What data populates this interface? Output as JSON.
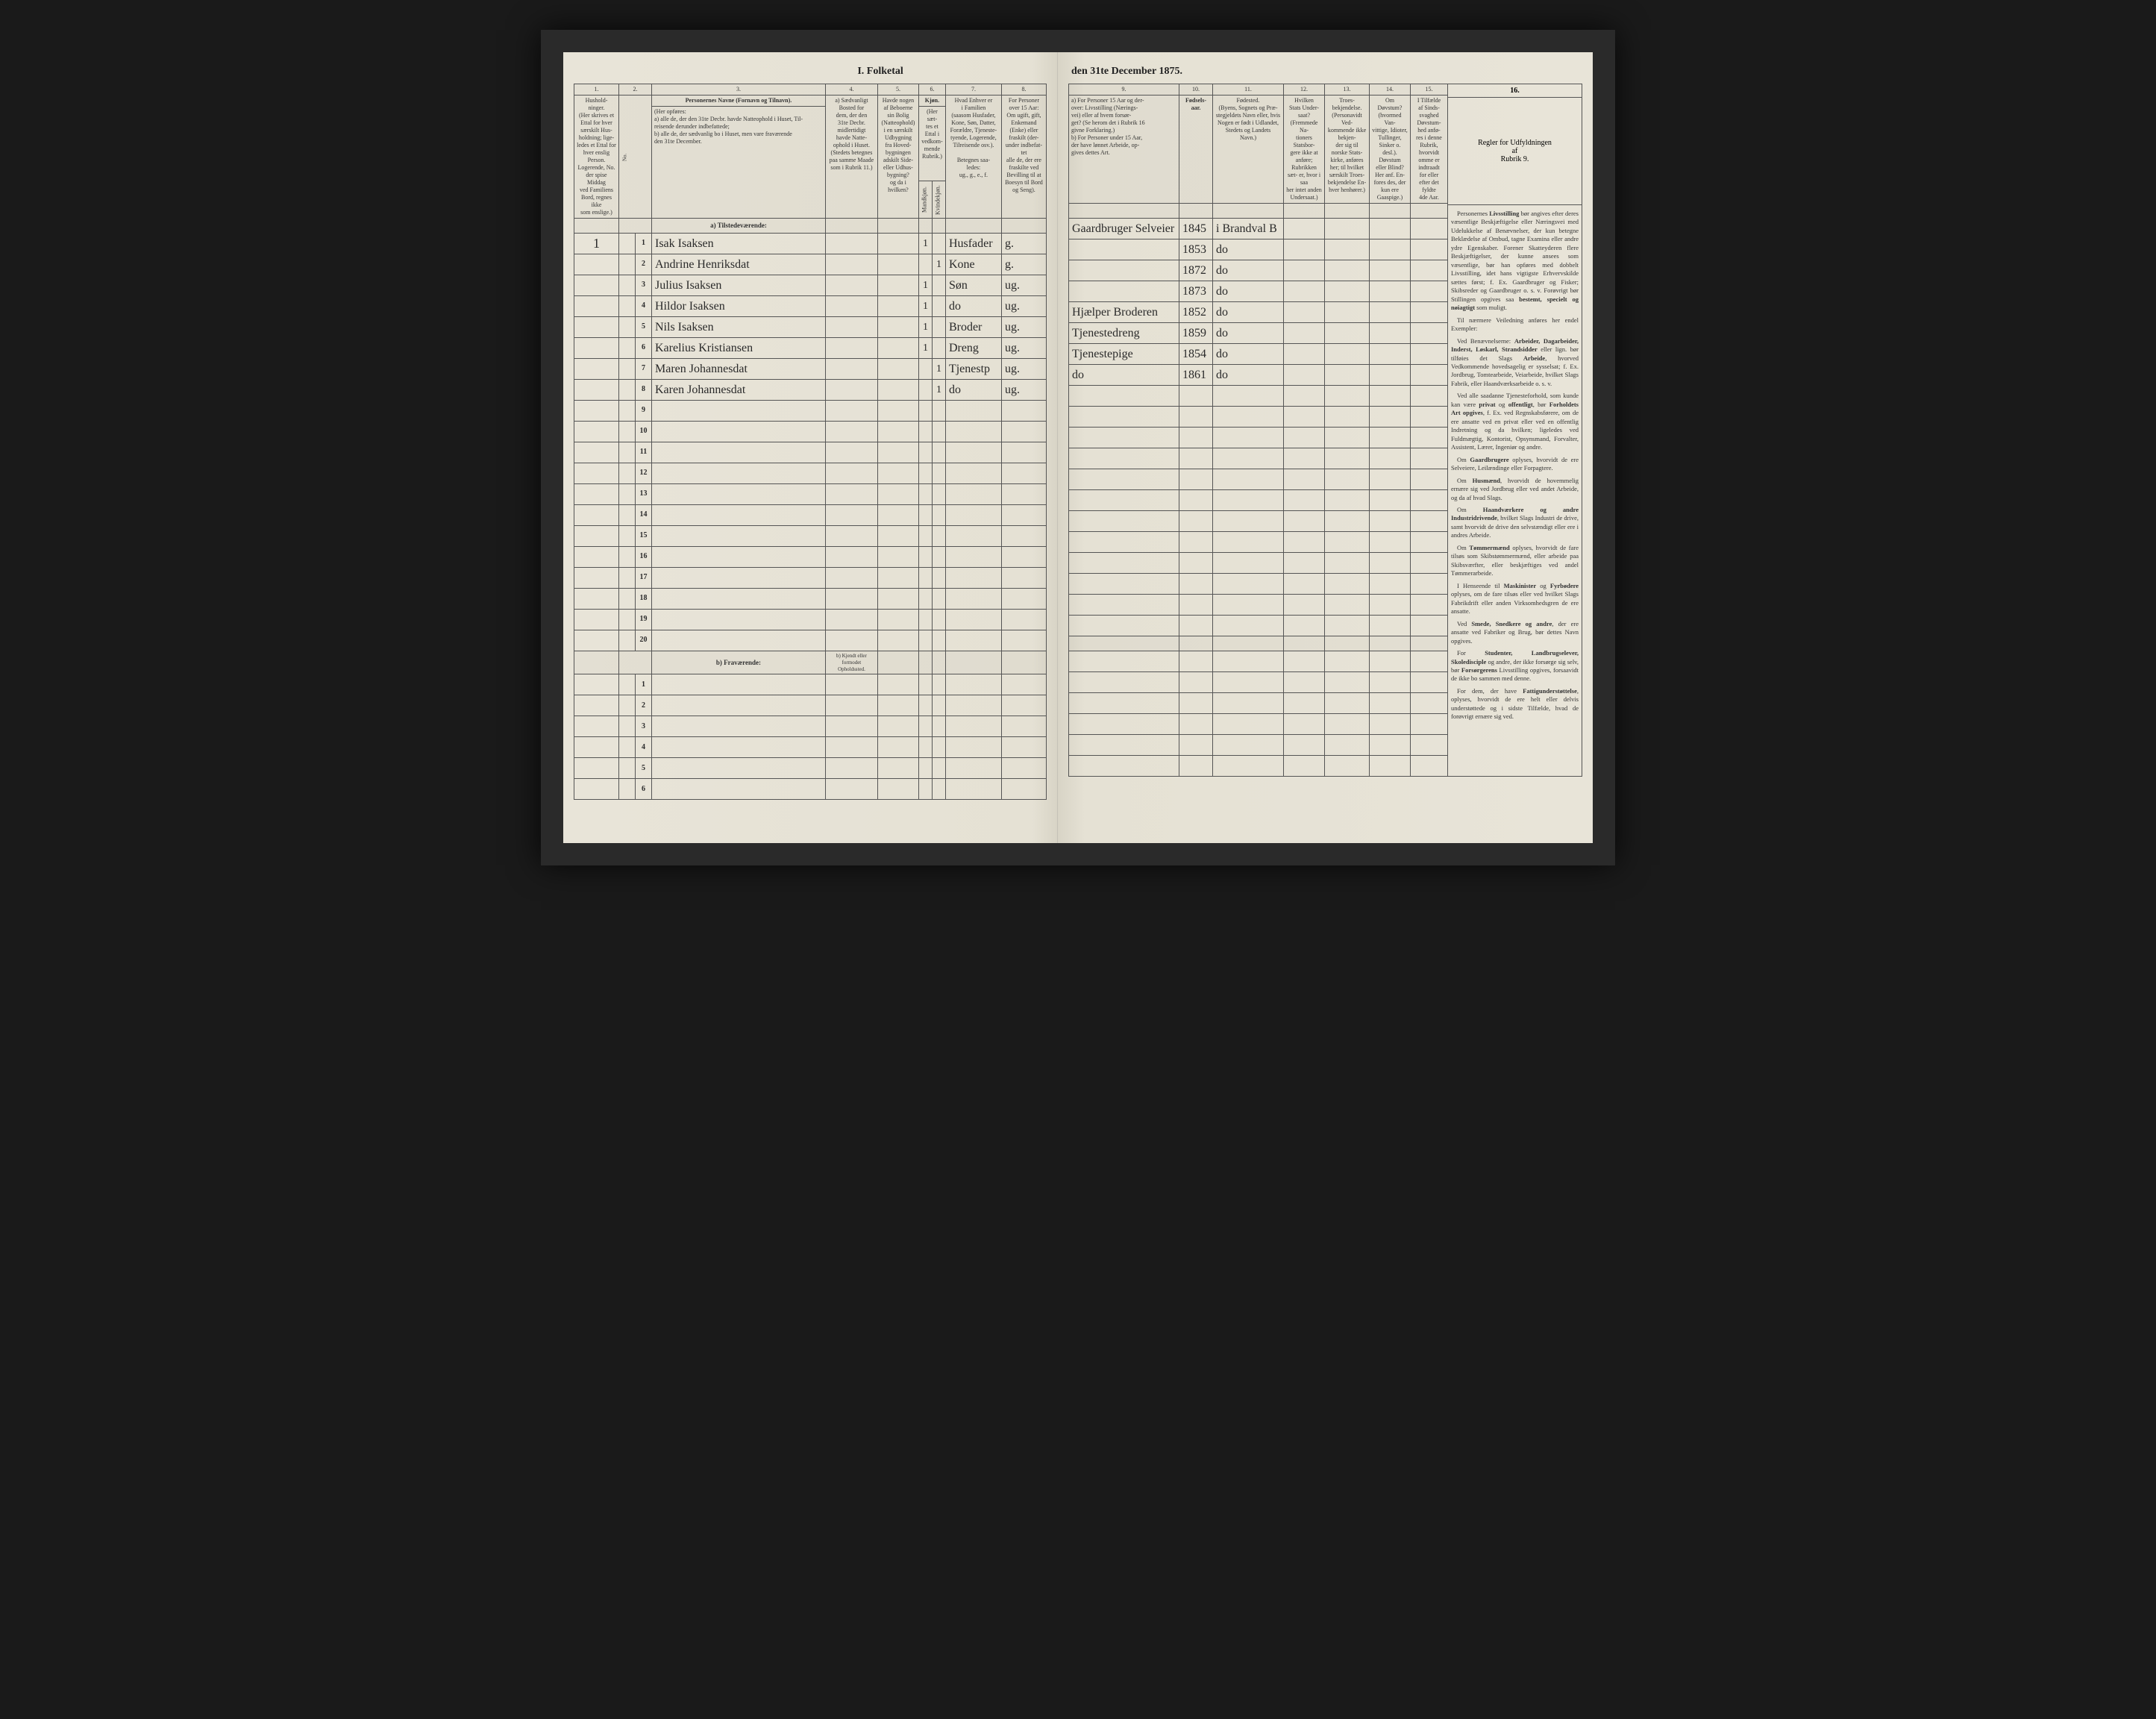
{
  "title_left": "I. Folketal",
  "title_right": "den 31te December 1875.",
  "columns_left": {
    "c1_num": "1.",
    "c1": "Hushold-\nninger.\n(Her skrives et\nEttal for hver\nsærskilt Hus-\nholdning; lige-\nledes et Ettal for\nhver enslig\nPerson.\nLogerende, No.\nder spise Middag\nved Familiens\nBord, regnes ikke\nsom enslige.)",
    "c2_num": "2.",
    "c3_num": "3.",
    "c3_hdr": "Personernes Navne (Fornavn og Tilnavn).",
    "c3_sub": "(Her opføres:\na) alle de, der den 31te Decbr. havde Natteophold i Huset, Til-\nreisende derunder indbefattede;\nb) alle de, der sædvanlig bo i Huset, men vare fraværende\nden 31te December.",
    "c4_num": "4.",
    "c4": "a) Sædvanligt\nBosted for\ndem, der den\n31te Decbr.\nmidlertidigt\nhavde Natte-\nophold i Huset.\n(Stedets betegnes\npaa samme Maade\nsom i Rubrik 11.)",
    "c5_num": "5.",
    "c5": "Havde nogen\naf Beboerne\nsin Bolig\n(Natteophold)\ni en særskilt\nUdbygning\nfra Hoved-\nbygningen\nadskilt Side-\neller Udhus-\nbygning?\nog da i\nhvilken?",
    "c6_num": "6.",
    "c6_hdr": "Kjøn.",
    "c6_sub": "(Her sæt-\ntes et\nEttal i\nvedkom-\nmende\nRubrik.)",
    "c6_m": "Mandkjøn.",
    "c6_k": "Kvindekjøn.",
    "c7_num": "7.",
    "c7": "Hvad Enhver er\ni Familien\n(saasom Husfader,\nKone, Søn, Datter,\nForældre, Tjeneste-\ntyende, Logerende,\nTilreisende osv.).\n\nBetegnes saa-\nledes:\nug., g., e., f.",
    "c8_num": "8.",
    "c8": "For Personer\nover 15 Aar:\nOm ugift, gift,\nEnkemand\n(Enke) eller\nfraskilt (der-\nunder indbefat-\ntet\nalle de, der ere\nfraskilte ved\nBevilling til at\nBoesyn til Bord\nog Seng)."
  },
  "columns_right": {
    "c9_num": "9.",
    "c9": "a) For Personer 15 Aar og der-\nover: Livsstilling (Nærings-\nvei) eller af hvem forsør-\nget? (Se herom det i Rubrik 16\ngivne Forklaring.)\nb) For Personer under 15 Aar,\nder have lønnet Arbeide, op-\ngives dettes Art.",
    "c10_num": "10.",
    "c10": "Fødsels-\naar.",
    "c11_num": "11.",
    "c11": "Fødested.\n(Byens, Sognets og Præ-\nstegjeldets Navn eller, hvis\nNogen er født i Udlandet,\nStedets og Landets\nNavn.)",
    "c12_num": "12.",
    "c12": "Hvilken\nStats Under-\nsaat?\n(Fremmede Na-\ntioners Statsbor-\ngere ikke at\nanføre;\nRubrikken sæt-\ter, hvor i saa\nher intet anden\nUndersaat.)",
    "c13_num": "13.",
    "c13": "Troes-\nbekjendelse.\n(Personavidt Ved-\nkommende ikke bekjen-\nder sig til\nnorske Stats-\nkirke, anføres\nher; til hvilket\nsærskilt Troes-\nbekjendelse En-\nhver henhører.)",
    "c14_num": "14.",
    "c14": "Om\nDøvstum?\n(hvormed Van-\nvittige, Idioter,\nTullinger,\nSinker o. desl.).\nDøvstum\neller Blind?\nHer anf. En-\nfores des, der\nkun ere\nGaaspige.)",
    "c15_num": "15.",
    "c15": "I Tilfælde\naf Sinds-\nsvaghed\nDøvstum-\nhed anfø-\nres i denne\nRubrik,\nhvorvidt\nomme er\nindtraadt\nfor eller\nefter det\nfyldte\n4de Aar.",
    "c16_num": "16.",
    "c16_hdr": "Regler for Udfyldningen\naf\nRubrik 9."
  },
  "section_a": "a) Tilstedeværende:",
  "section_b": "b) Fraværende:",
  "section_b_note": "b) Kjendt eller\nformodet\nOpholdssted.",
  "rows": [
    {
      "n": "1",
      "h": "1",
      "name": "Isak Isaksen",
      "c4": "",
      "c5": "",
      "m": "1",
      "k": "",
      "rel": "Husfader",
      "civ": "g.",
      "occ": "Gaardbruger Selveier",
      "year": "1845",
      "place": "i Brandval B"
    },
    {
      "n": "2",
      "h": "",
      "name": "Andrine Henriksdat",
      "c4": "",
      "c5": "",
      "m": "",
      "k": "1",
      "rel": "Kone",
      "civ": "g.",
      "occ": "",
      "year": "1853",
      "place": "do"
    },
    {
      "n": "3",
      "h": "",
      "name": "Julius Isaksen",
      "c4": "",
      "c5": "",
      "m": "1",
      "k": "",
      "rel": "Søn",
      "civ": "ug.",
      "occ": "",
      "year": "1872",
      "place": "do"
    },
    {
      "n": "4",
      "h": "",
      "name": "Hildor Isaksen",
      "c4": "",
      "c5": "",
      "m": "1",
      "k": "",
      "rel": "do",
      "civ": "ug.",
      "occ": "",
      "year": "1873",
      "place": "do"
    },
    {
      "n": "5",
      "h": "",
      "name": "Nils Isaksen",
      "c4": "",
      "c5": "",
      "m": "1",
      "k": "",
      "rel": "Broder",
      "civ": "ug.",
      "occ": "Hjælper Broderen",
      "year": "1852",
      "place": "do"
    },
    {
      "n": "6",
      "h": "",
      "name": "Karelius Kristiansen",
      "c4": "",
      "c5": "",
      "m": "1",
      "k": "",
      "rel": "Dreng",
      "civ": "ug.",
      "occ": "Tjenestedreng",
      "year": "1859",
      "place": "do"
    },
    {
      "n": "7",
      "h": "",
      "name": "Maren Johannesdat",
      "c4": "",
      "c5": "",
      "m": "",
      "k": "1",
      "rel": "Tjenestp",
      "civ": "ug.",
      "occ": "Tjenestepige",
      "year": "1854",
      "place": "do"
    },
    {
      "n": "8",
      "h": "",
      "name": "Karen Johannesdat",
      "c4": "",
      "c5": "",
      "m": "",
      "k": "1",
      "rel": "do",
      "civ": "ug.",
      "occ": "do",
      "year": "1861",
      "place": "do"
    }
  ],
  "empty_rows_a": [
    "9",
    "10",
    "11",
    "12",
    "13",
    "14",
    "15",
    "16",
    "17",
    "18",
    "19",
    "20"
  ],
  "empty_rows_b": [
    "1",
    "2",
    "3",
    "4",
    "5",
    "6"
  ],
  "instructions": [
    "Personernes <b>Livsstilling</b> bør angives efter deres væsentlige Beskjæftigelse eller Næringsvei med Udelukkelse af Benævnelser, der kun betegne Beklædelse af Ombud, tagne Examina eller andre ydre Egenskaber. Forener Skatteyderen flere Beskjæftigelser, der kunne ansees som væsentlige, bør han opføres med dobbelt Livsstilling, idet hans vigtigste Erhvervskilde sættes først; f. Ex. Gaardbruger og Fisker; Skibsreder og Gaardbruger o. s. v. Forøvrigt bør Stillingen opgives saa <b>bestemt, specielt og nøiagtigt</b> som muligt.",
    "Til nærmere Veiledning anføres her endel Exempler:",
    "Ved Benævnelserne: <b>Arbeider, Dagarbeider, Inderst, Løskarl, Strandsidder</b> eller lign. bør tilføies det Slags <b>Arbeide</b>, hvorved Vedkommende hovedsagelig er sysselsat; f. Ex. Jordbrug, Tomtearbeide, Veiarbeide, hvilket Slags Fabrik, eller Haandværksarbeide o. s. v.",
    "Ved alle saadanne Tjenesteforhold, som kunde kan være <b>privat</b> og <b>offentligt</b>, bør <b>Forholdets Art opgives</b>, f. Ex. ved Regnskabsførere, om de ere ansatte ved en privat eller ved en offentlig Indretning og da hvilken; ligeledes ved Fuldmægtig, Kontorist, Opsynsmand, Forvalter, Assistent, Lærer, Ingeniør og andre.",
    "Om <b>Gaardbrugere</b> oplyses, hvorvidt de ere Selveiere, Leilændinge eller Forpagtere.",
    "Om <b>Husmænd</b>, hvorvidt de hovemmelig ernære sig ved Jordbrug eller ved andet Arbeide, og da af hvad Slags.",
    "Om <b>Haandværkere og andre Industridrivende</b>, hvilket Slags Industri de drive, samt hvorvidt de drive den selvstændigt eller ere i andres Arbeide.",
    "Om <b>Tømmermænd</b> oplyses, hvorvidt de fare tilsøs som Skibstømmermænd, eller arbeide paa Skibsværfter, eller beskjæftiges ved andel Tømmerarbeide.",
    "I Henseende til <b>Maskinister</b> og <b>Fyrbødere</b> oplyses, om de fare tilsøs eller ved hvilket Slags Fabrikdrift eller anden Virksomhedsgren de ere ansatte.",
    "Ved <b>Smede, Snedkere og andre</b>, der ere ansatte ved Fabriker og Brug, bør dettes Navn opgives.",
    "For <b>Studenter, Landbrugselever, Skoledisciple</b> og andre, der ikke forsørge sig selv, bør <b>Forsørgerens</b> Livsstilling opgives, forsaavidt de ikke bo sammen med denne.",
    "For dem, der have <b>Fattigunderstøttelse</b>, oplyses, hvorvidt de ere helt eller delvis understøttede og i sidste Tilfælde, hvad de forøvrigt ernære sig ved."
  ],
  "colors": {
    "paper": "#e8e4d8",
    "ink": "#2a2a2a",
    "border": "#555555",
    "background": "#1a1a1a"
  }
}
